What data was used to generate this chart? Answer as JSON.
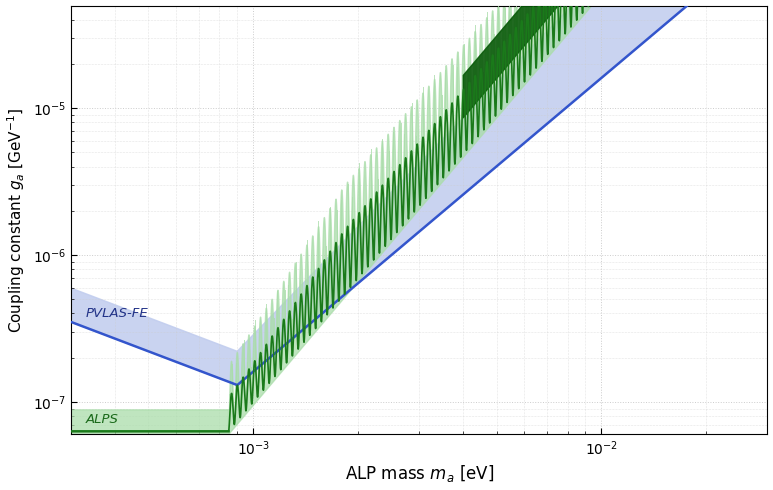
{
  "xlim": [
    0.0003,
    0.03
  ],
  "ylim": [
    6e-08,
    5e-05
  ],
  "xlabel": "ALP mass $m_a$ [eV]",
  "ylabel": "Coupling constant $g_a$ [GeV$^{-1}$]",
  "pvlas_line_color": "#3355CC",
  "pvlas_fill_color": "#C0CCEE",
  "alps_line_color": "#1A7A1A",
  "alps_fill_color": "#AADDAA",
  "alps_dark_color": "#0A5A0A",
  "background_color": "#ffffff",
  "grid_color": "#cccccc"
}
